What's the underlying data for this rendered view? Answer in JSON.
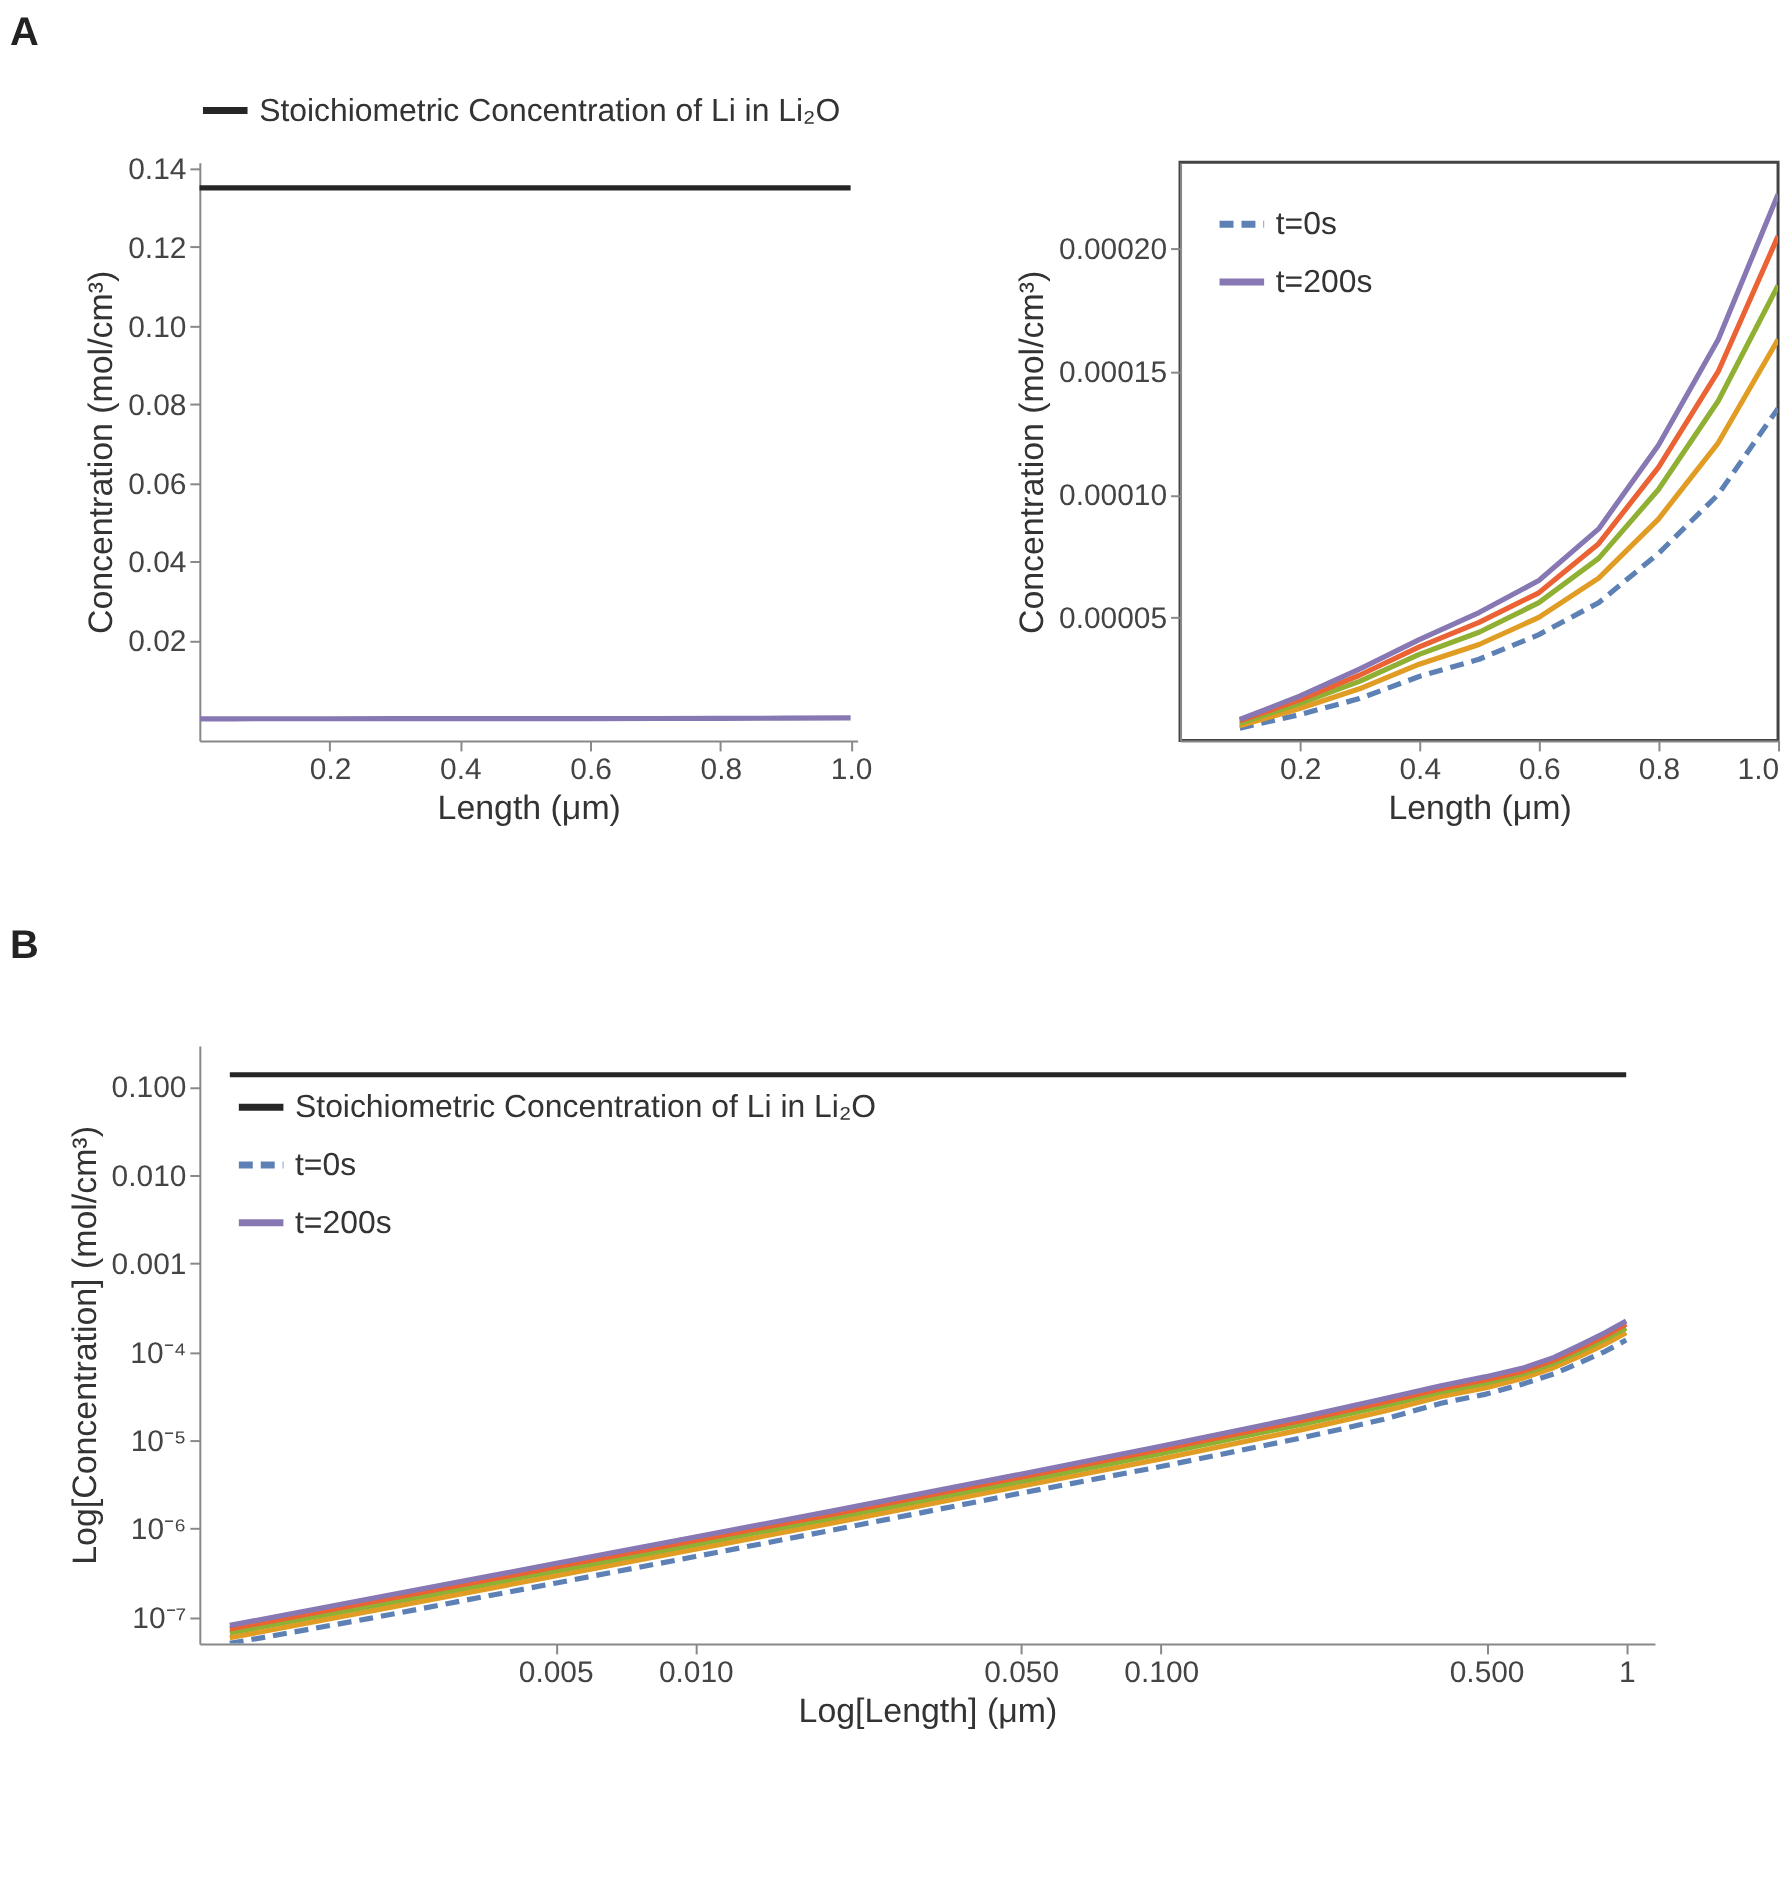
{
  "chart_data": [
    {
      "type": "line",
      "xlabel": "Length (μm)",
      "ylabel": "Concentration (mol/cm³)",
      "annotations": [
        "A"
      ],
      "legend": "top",
      "x": [
        0.001,
        0.002,
        0.005,
        0.01,
        0.02,
        0.05,
        0.1,
        0.2,
        0.3,
        0.4,
        0.5,
        0.6,
        0.7,
        0.8,
        0.9,
        1.0
      ],
      "xlim": [
        0,
        1.01
      ],
      "xticks": [
        0.2,
        0.4,
        0.6,
        0.8,
        {
          "value": 1.0,
          "label": "1.0"
        }
      ],
      "ylim": [
        -0.0055,
        0.1415
      ],
      "yticks": [
        0.02,
        0.04,
        0.06,
        0.08,
        {
          "value": 0.1,
          "label": "0.10"
        },
        0.12,
        0.14
      ],
      "series": [
        {
          "name": "Stoichiometric Concentration of Li in Li₂O",
          "color": "#262626",
          "line_style": "solid",
          "x": [
            0,
            1.0
          ],
          "values": [
            0.135,
            0.135
          ]
        },
        {
          "color": "#8778b3",
          "line_style": "solid",
          "values": [
            8e-08,
            1.6e-07,
            4e-07,
            8e-07,
            1.6e-06,
            4.1e-06,
            8.5e-06,
            1.8e-05,
            2.9e-05,
            4.1e-05,
            5.2e-05,
            6.5e-05,
            8.6e-05,
            0.00012,
            0.000163,
            0.000222
          ]
        }
      ]
    },
    {
      "type": "line",
      "xlabel": "Length (μm)",
      "ylabel": "Concentration (mol/cm³)",
      "legend": "top left",
      "x": [
        0.1,
        0.2,
        0.3,
        0.4,
        0.5,
        0.6,
        0.7,
        0.8,
        0.9,
        1.0
      ],
      "xlim": [
        0,
        1.0
      ],
      "xticks": [
        0.2,
        0.4,
        0.6,
        0.8,
        {
          "value": 1.0,
          "label": "1.0"
        }
      ],
      "ylim": [
        0,
        0.000235
      ],
      "yticks": [
        {
          "value": 5e-05,
          "label": "0.00005"
        },
        {
          "value": 0.0001,
          "label": "0.00010"
        },
        {
          "value": 0.00015,
          "label": "0.00015"
        },
        {
          "value": 0.0002,
          "label": "0.00020"
        }
      ],
      "series": [
        {
          "name": "t=0s",
          "color": "#5e81b5",
          "line_style": "dashed",
          "values": [
            5e-06,
            1.05e-05,
            1.7e-05,
            2.6e-05,
            3.3e-05,
            4.3e-05,
            5.6e-05,
            7.6e-05,
            0.0001,
            0.000135
          ]
        },
        {
          "color": "#e19c24",
          "line_style": "solid",
          "values": [
            6e-06,
            1.3e-05,
            2.1e-05,
            3.1e-05,
            3.9e-05,
            5e-05,
            6.6e-05,
            9e-05,
            0.000121,
            0.000163
          ]
        },
        {
          "color": "#8fb032",
          "line_style": "solid",
          "values": [
            7e-06,
            1.5e-05,
            2.4e-05,
            3.5e-05,
            4.4e-05,
            5.6e-05,
            7.4e-05,
            0.000102,
            0.000138,
            0.000185
          ]
        },
        {
          "color": "#eb6235",
          "line_style": "solid",
          "values": [
            8e-06,
            1.65e-05,
            2.65e-05,
            3.8e-05,
            4.8e-05,
            6e-05,
            8e-05,
            0.000111,
            0.00015,
            0.000205
          ]
        },
        {
          "name": "t=200s",
          "color": "#8778b3",
          "line_style": "solid",
          "values": [
            8.5e-06,
            1.8e-05,
            2.9e-05,
            4.1e-05,
            5.2e-05,
            6.5e-05,
            8.6e-05,
            0.00012,
            0.000163,
            0.000222
          ]
        }
      ]
    },
    {
      "type": "line",
      "xlabel": "Log[Length] (μm)",
      "ylabel": "Log[Concentration] (mol/cm³)",
      "annotations": [
        "B"
      ],
      "legend": "top left",
      "log": "xy",
      "x": [
        0.001,
        0.002,
        0.005,
        0.01,
        0.02,
        0.05,
        0.1,
        0.2,
        0.3,
        0.4,
        0.5,
        0.6,
        0.7,
        0.8,
        0.9,
        1.0
      ],
      "xlim": [
        0.00086,
        1.15
      ],
      "xticks": [
        {
          "value": 0.005,
          "label": "0.005"
        },
        {
          "value": 0.01,
          "label": "0.010"
        },
        {
          "value": 0.05,
          "label": "0.050"
        },
        {
          "value": 0.1,
          "label": "0.100"
        },
        {
          "value": 0.5,
          "label": "0.500"
        },
        1
      ],
      "ylim": [
        5e-08,
        0.29
      ],
      "yticks": [
        {
          "value": 1e-07,
          "label": "10⁻⁷"
        },
        {
          "value": 1e-06,
          "label": "10⁻⁶"
        },
        {
          "value": 1e-05,
          "label": "10⁻⁵"
        },
        {
          "value": 0.0001,
          "label": "10⁻⁴"
        },
        {
          "value": 0.001,
          "label": "0.001"
        },
        {
          "value": 0.01,
          "label": "0.010"
        },
        {
          "value": 0.1,
          "label": "0.100"
        }
      ],
      "series": [
        {
          "name": "Stoichiometric Concentration of Li in Li₂O",
          "color": "#262626",
          "line_style": "solid",
          "x": [
            0.001,
            1.0
          ],
          "values": [
            0.135,
            0.135
          ]
        },
        {
          "name": "t=0s",
          "color": "#5e81b5",
          "line_style": "dashed",
          "values": [
            5e-08,
            9.6e-08,
            2.4e-07,
            4.8e-07,
            9.7e-07,
            2.5e-06,
            5e-06,
            1.05e-05,
            1.7e-05,
            2.6e-05,
            3.3e-05,
            4.3e-05,
            5.6e-05,
            7.6e-05,
            0.0001,
            0.000135
          ]
        },
        {
          "color": "#e19c24",
          "line_style": "solid",
          "values": [
            5.8e-08,
            1.16e-07,
            2.9e-07,
            5.8e-07,
            1.17e-06,
            3e-06,
            6.1e-06,
            1.3e-05,
            2.1e-05,
            3.1e-05,
            3.9e-05,
            5e-05,
            6.6e-05,
            9e-05,
            0.000121,
            0.000163
          ]
        },
        {
          "color": "#8fb032",
          "line_style": "solid",
          "values": [
            6.6e-08,
            1.32e-07,
            3.3e-07,
            6.6e-07,
            1.33e-06,
            3.4e-06,
            7e-06,
            1.5e-05,
            2.4e-05,
            3.5e-05,
            4.4e-05,
            5.6e-05,
            7.4e-05,
            0.000102,
            0.000138,
            0.000185
          ]
        },
        {
          "color": "#eb6235",
          "line_style": "solid",
          "values": [
            7.3e-08,
            1.46e-07,
            3.65e-07,
            7.3e-07,
            1.47e-06,
            3.8e-06,
            7.8e-06,
            1.65e-05,
            2.65e-05,
            3.8e-05,
            4.8e-05,
            6e-05,
            8e-05,
            0.000111,
            0.00015,
            0.000205
          ]
        },
        {
          "name": "t=200s",
          "color": "#8778b3",
          "line_style": "solid",
          "values": [
            8e-08,
            1.6e-07,
            4e-07,
            8e-07,
            1.6e-06,
            4.1e-06,
            8.5e-06,
            1.8e-05,
            2.9e-05,
            4.1e-05,
            5.2e-05,
            6.5e-05,
            8.6e-05,
            0.00012,
            0.000163,
            0.000222
          ]
        }
      ]
    }
  ]
}
